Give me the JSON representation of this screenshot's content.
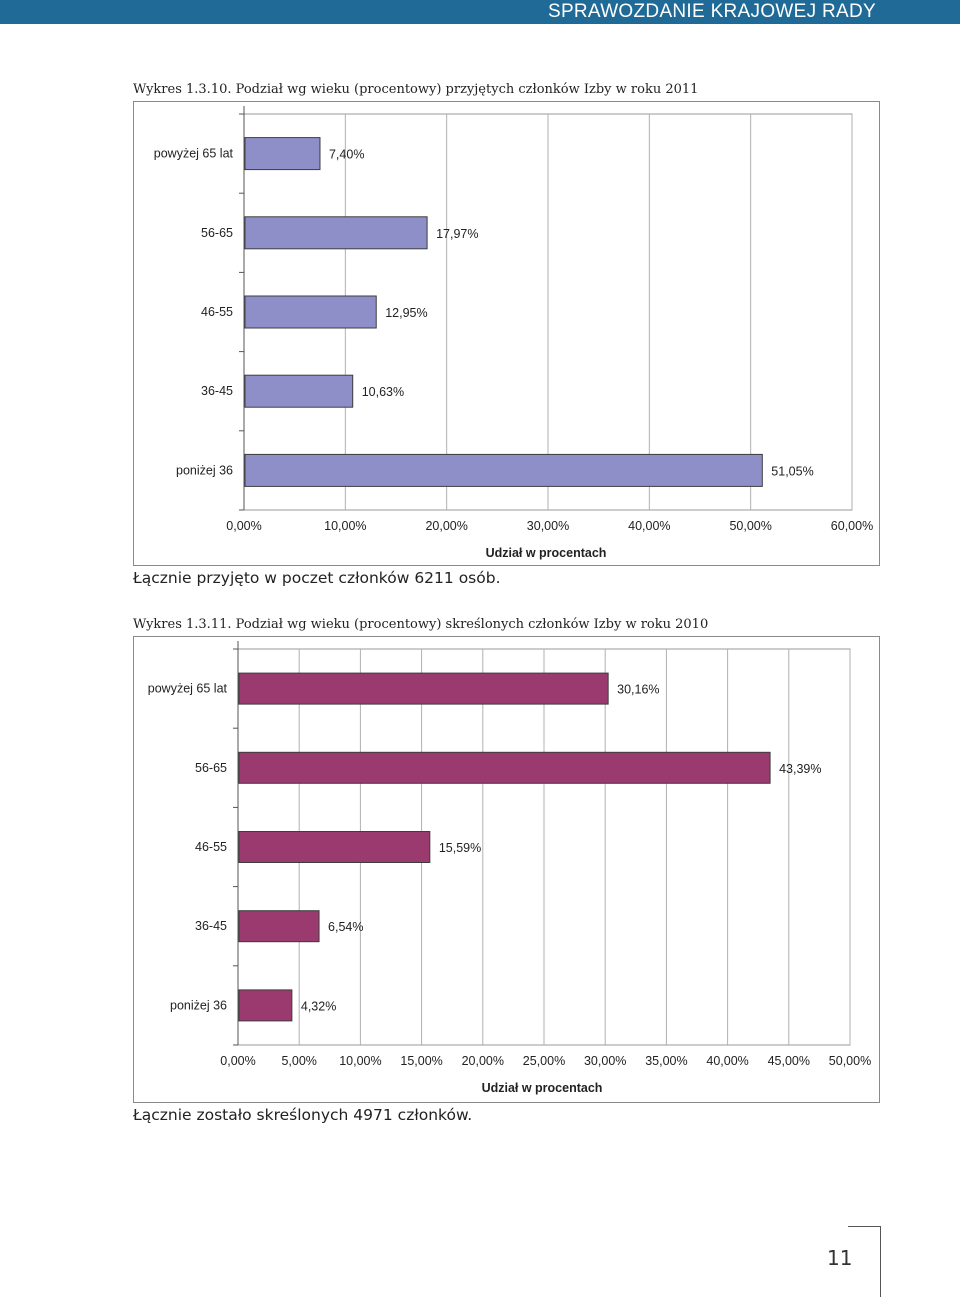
{
  "header": {
    "title": "SPRAWOZDANIE KRAJOWEJ RADY"
  },
  "figure1": {
    "caption": "Wykres 1.3.10. Podział wg wieku (procentowy) przyjętych członków Izby w roku 2011",
    "summary": "Łącznie przyjęto w poczet członków 6211 osób."
  },
  "figure2": {
    "caption": "Wykres 1.3.11. Podział wg wieku (procentowy) skreślonych członków Izby w roku 2010",
    "summary": "Łącznie zostało skreślonych 4971 członków."
  },
  "page": {
    "number": "11"
  },
  "chart_data": [
    {
      "type": "bar",
      "orientation": "horizontal",
      "categories": [
        "powyżej 65 lat",
        "56-65",
        "46-55",
        "36-45",
        "poniżej 36"
      ],
      "values": [
        7.4,
        17.97,
        12.95,
        10.63,
        51.05
      ],
      "value_labels": [
        "7,40%",
        "17,97%",
        "12,95%",
        "10,63%",
        "51,05%"
      ],
      "xlabel": "Udział w procentach",
      "xlim": [
        0,
        60
      ],
      "xticks": [
        "0,00%",
        "10,00%",
        "20,00%",
        "30,00%",
        "40,00%",
        "50,00%",
        "60,00%"
      ],
      "grid": true,
      "bar_color": "#8e8fc9"
    },
    {
      "type": "bar",
      "orientation": "horizontal",
      "categories": [
        "powyżej 65 lat",
        "56-65",
        "46-55",
        "36-45",
        "poniżej 36"
      ],
      "values": [
        30.16,
        43.39,
        15.59,
        6.54,
        4.32
      ],
      "value_labels": [
        "30,16%",
        "43,39%",
        "15,59%",
        "6,54%",
        "4,32%"
      ],
      "xlabel": "Udział w procentach",
      "xlim": [
        0,
        50
      ],
      "xticks": [
        "0,00%",
        "5,00%",
        "10,00%",
        "15,00%",
        "20,00%",
        "25,00%",
        "30,00%",
        "35,00%",
        "40,00%",
        "45,00%",
        "50,00%"
      ],
      "grid": true,
      "bar_color": "#9a3a6e"
    }
  ]
}
